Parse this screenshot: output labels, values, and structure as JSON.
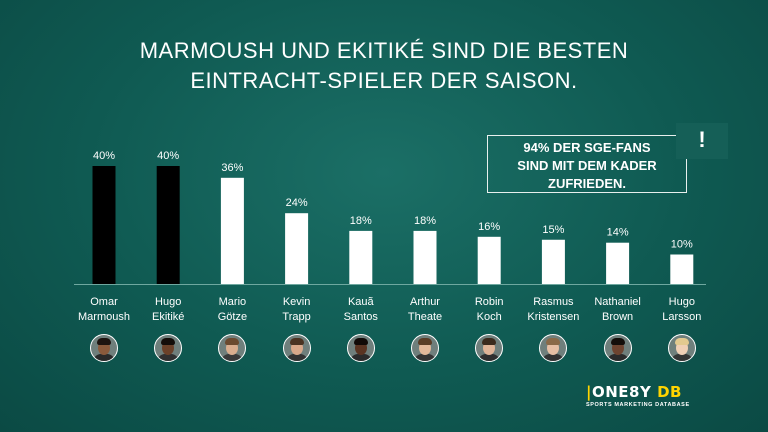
{
  "title": {
    "line1": "MARMOUSH UND EKITIKÉ SIND DIE BESTEN",
    "line2": "EINTRACHT-SPIELER DER SAISON."
  },
  "callout": {
    "line1": "94% DER SGE-FANS",
    "line2": "SIND MIT DEM KADER",
    "line3": "ZUFRIEDEN.",
    "mark": "!"
  },
  "colors": {
    "background": "#0f5a52",
    "highlight_bar": "#000000",
    "bar": "#ffffff",
    "logo_accent": "#ffd400"
  },
  "chart_data": {
    "type": "bar",
    "categories": [
      [
        "Omar",
        "Marmoush"
      ],
      [
        "Hugo",
        "Ekitiké"
      ],
      [
        "Mario",
        "Götze"
      ],
      [
        "Kevin",
        "Trapp"
      ],
      [
        "Kauã",
        "Santos"
      ],
      [
        "Arthur",
        "Theate"
      ],
      [
        "Robin",
        "Koch"
      ],
      [
        "Rasmus",
        "Kristensen"
      ],
      [
        "Nathaniel",
        "Brown"
      ],
      [
        "Hugo",
        "Larsson"
      ]
    ],
    "values": [
      40,
      40,
      36,
      24,
      18,
      18,
      16,
      15,
      14,
      10
    ],
    "data_labels": [
      "40%",
      "40%",
      "36%",
      "24%",
      "18%",
      "18%",
      "16%",
      "15%",
      "14%",
      "10%"
    ],
    "highlighted": [
      true,
      true,
      false,
      false,
      false,
      false,
      false,
      false,
      false,
      false
    ],
    "ylim": [
      0,
      40
    ],
    "grid": false,
    "legend": "none"
  },
  "player_photos": [
    {
      "skin": "#8a5a3c",
      "hair": "#1d1410",
      "shirt": "#2a2a2a"
    },
    {
      "skin": "#6b4129",
      "hair": "#140d09",
      "shirt": "#303030"
    },
    {
      "skin": "#d9ad8e",
      "hair": "#6b4a2f",
      "shirt": "#3a3a3a"
    },
    {
      "skin": "#d8a88a",
      "hair": "#4a3322",
      "shirt": "#333333"
    },
    {
      "skin": "#5a3422",
      "hair": "#110a07",
      "shirt": "#2c2c2c"
    },
    {
      "skin": "#e2b89a",
      "hair": "#5a3d26",
      "shirt": "#343434"
    },
    {
      "skin": "#e0b497",
      "hair": "#3b2a1c",
      "shirt": "#2f2f2f"
    },
    {
      "skin": "#e6bfa4",
      "hair": "#8a6a48",
      "shirt": "#333333"
    },
    {
      "skin": "#6e4430",
      "hair": "#140e0a",
      "shirt": "#2b2b2b"
    },
    {
      "skin": "#f0cfb5",
      "hair": "#e3c98f",
      "shirt": "#353535"
    }
  ],
  "logo": {
    "bar": "|",
    "name": "ONE8Y",
    "db": "DB",
    "tagline": "SPORTS MARKETING DATABASE"
  }
}
